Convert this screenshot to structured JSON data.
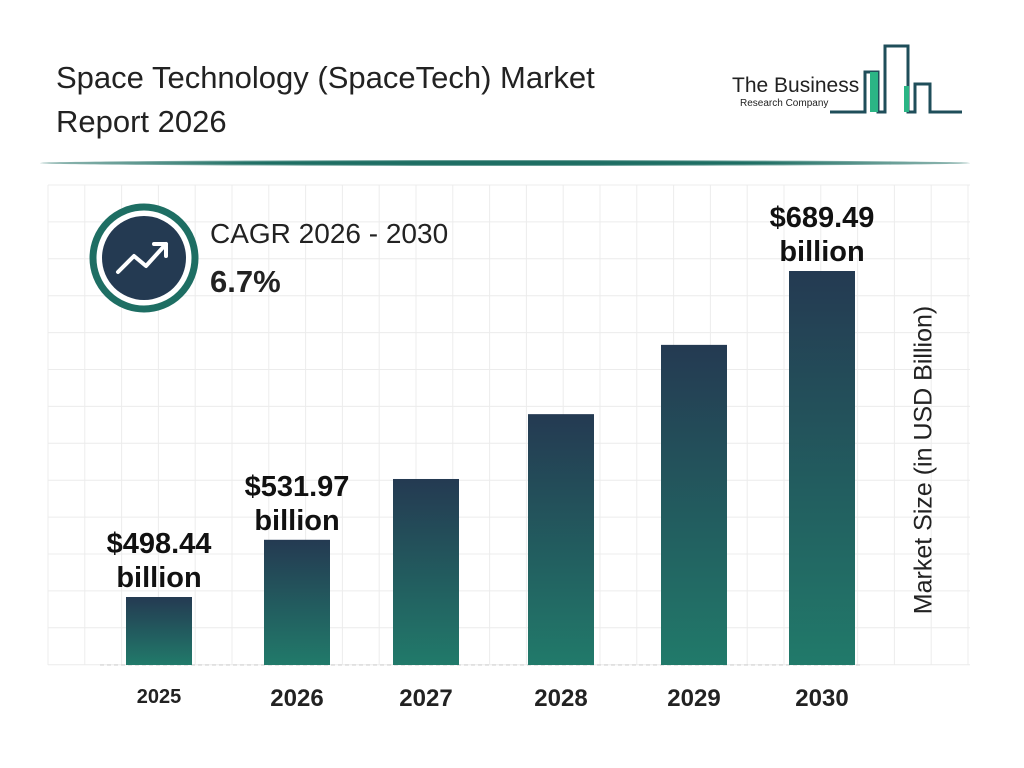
{
  "header": {
    "title": "Space Technology (SpaceTech) Market Report 2026"
  },
  "logo": {
    "line1": "The Business",
    "line2": "Research Company"
  },
  "cagr": {
    "label": "CAGR 2026 - 2030",
    "value": "6.7%",
    "icon": "trending-up-icon"
  },
  "colors": {
    "bar_top": "#243a52",
    "bar_bottom": "#217a6a",
    "accent": "#1e6e63"
  },
  "chart_data": {
    "type": "bar",
    "title": "",
    "xlabel": "",
    "ylabel": "Market Size (in USD Billion)",
    "categories": [
      "2025",
      "2026",
      "2027",
      "2028",
      "2029",
      "2030"
    ],
    "values": [
      498.44,
      531.97,
      567.6,
      605.6,
      646.2,
      689.49
    ],
    "data_labels": [
      {
        "index": 0,
        "line1": "$498.44",
        "line2": "billion"
      },
      {
        "index": 1,
        "line1": "$531.97",
        "line2": "billion"
      },
      {
        "index": 5,
        "line1": "$689.49",
        "line2": "billion"
      }
    ],
    "grid": true
  }
}
